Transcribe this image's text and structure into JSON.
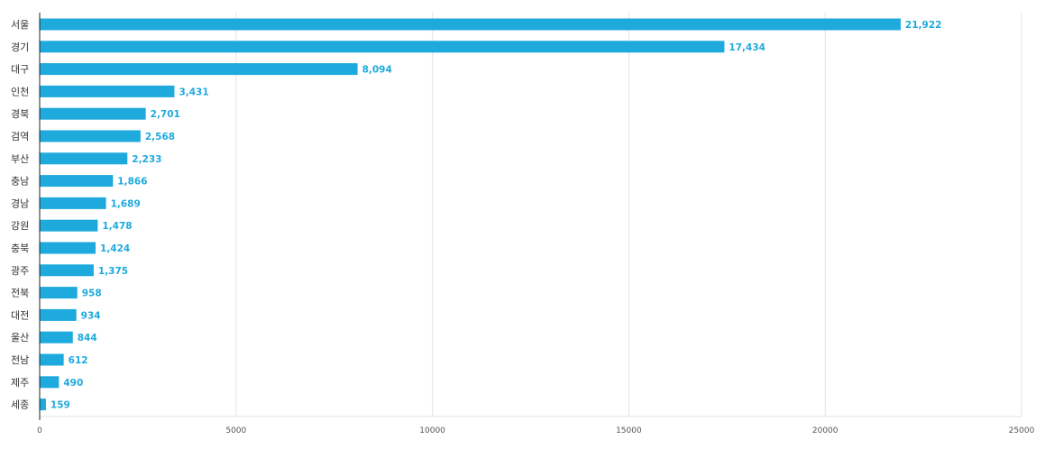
{
  "chart_data": {
    "type": "bar",
    "orientation": "horizontal",
    "categories": [
      "서울",
      "경기",
      "대구",
      "인천",
      "경북",
      "검역",
      "부산",
      "충남",
      "경남",
      "강원",
      "충북",
      "광주",
      "전북",
      "대전",
      "울산",
      "전남",
      "제주",
      "세종"
    ],
    "values": [
      21922,
      17434,
      8094,
      3431,
      2701,
      2568,
      2233,
      1866,
      1689,
      1478,
      1424,
      1375,
      958,
      934,
      844,
      612,
      490,
      159
    ],
    "value_labels": [
      "21,922",
      "17,434",
      "8,094",
      "3,431",
      "2,701",
      "2,568",
      "2,233",
      "1,866",
      "1,689",
      "1,478",
      "1,424",
      "1,375",
      "958",
      "934",
      "844",
      "612",
      "490",
      "159"
    ],
    "xlim": [
      0,
      25000
    ],
    "x_ticks": [
      0,
      5000,
      10000,
      15000,
      20000,
      25000
    ],
    "x_tick_labels": [
      "0",
      "5000",
      "10000",
      "15000",
      "20000",
      "25000"
    ],
    "title": "",
    "xlabel": "",
    "ylabel": "",
    "grid": true,
    "legend": "none",
    "bar_color": "#1eaadd",
    "label_color": "#1eaadd"
  }
}
